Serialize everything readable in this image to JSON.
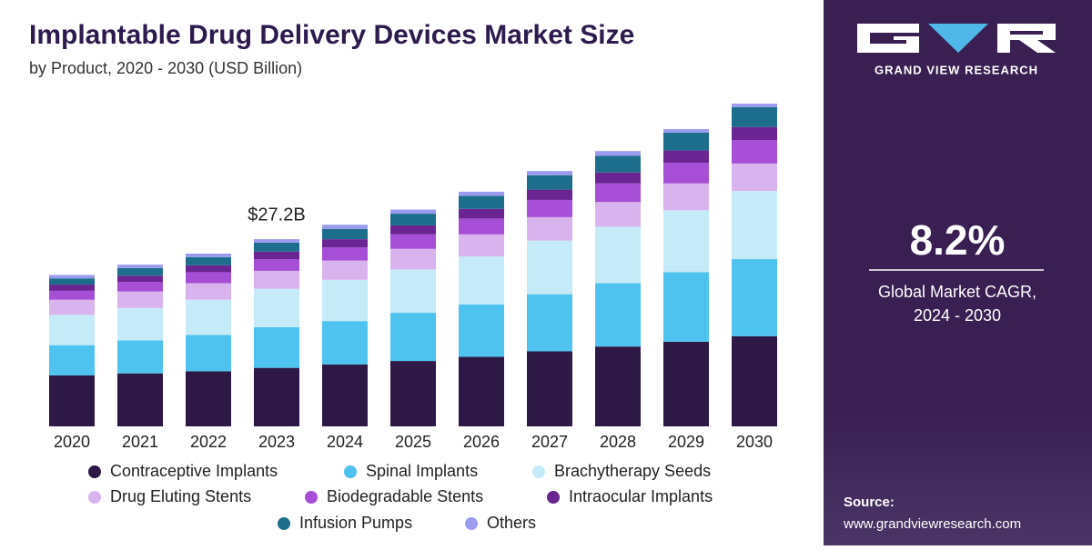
{
  "chart_data": {
    "type": "bar",
    "stacked": true,
    "title": "Implantable Drug Delivery Devices Market Size",
    "subtitle": "by Product, 2020 - 2030 (USD Billion)",
    "categories": [
      "2020",
      "2021",
      "2022",
      "2023",
      "2024",
      "2025",
      "2026",
      "2027",
      "2028",
      "2029",
      "2030"
    ],
    "series": [
      {
        "name": "Contraceptive Implants",
        "color": "#2d1846",
        "values": [
          7.4,
          7.7,
          8.0,
          8.5,
          9.0,
          9.5,
          10.1,
          10.9,
          11.6,
          12.3,
          13.1
        ]
      },
      {
        "name": "Spinal Implants",
        "color": "#4fc3f0",
        "values": [
          4.4,
          4.8,
          5.3,
          5.9,
          6.3,
          7.0,
          7.6,
          8.3,
          9.2,
          10.1,
          11.2
        ]
      },
      {
        "name": "Brachytherapy Seeds",
        "color": "#c5eaf8",
        "values": [
          4.4,
          4.7,
          5.1,
          5.6,
          6.0,
          6.3,
          7.0,
          7.8,
          8.2,
          9.0,
          9.9
        ]
      },
      {
        "name": "Drug Eluting Stents",
        "color": "#d9b3ee",
        "values": [
          2.2,
          2.4,
          2.4,
          2.6,
          2.8,
          3.0,
          3.2,
          3.4,
          3.6,
          3.9,
          4.0
        ]
      },
      {
        "name": "Biodegradable Stents",
        "color": "#a64fd6",
        "values": [
          1.3,
          1.4,
          1.6,
          1.7,
          1.9,
          2.1,
          2.3,
          2.5,
          2.7,
          3.0,
          3.4
        ]
      },
      {
        "name": "Intraocular Implants",
        "color": "#6a2592",
        "values": [
          0.9,
          0.9,
          1.0,
          1.1,
          1.2,
          1.3,
          1.4,
          1.5,
          1.6,
          1.8,
          1.9
        ]
      },
      {
        "name": "Infusion Pumps",
        "color": "#1c6e8c",
        "values": [
          0.9,
          1.1,
          1.2,
          1.3,
          1.5,
          1.7,
          1.9,
          2.1,
          2.4,
          2.6,
          2.9
        ]
      },
      {
        "name": "Others",
        "color": "#9b9cf0",
        "values": [
          0.5,
          0.5,
          0.5,
          0.5,
          0.6,
          0.6,
          0.6,
          0.6,
          0.7,
          0.5,
          0.5
        ]
      }
    ],
    "annotation": {
      "text": "$27.2B",
      "category": "2023"
    }
  },
  "panel": {
    "brand": "GRAND VIEW RESEARCH",
    "cagr": "8.2%",
    "cagr_label": "Global Market CAGR,",
    "cagr_period": "2024 - 2030",
    "source_label": "Source:",
    "source_url": "www.grandviewresearch.com"
  }
}
